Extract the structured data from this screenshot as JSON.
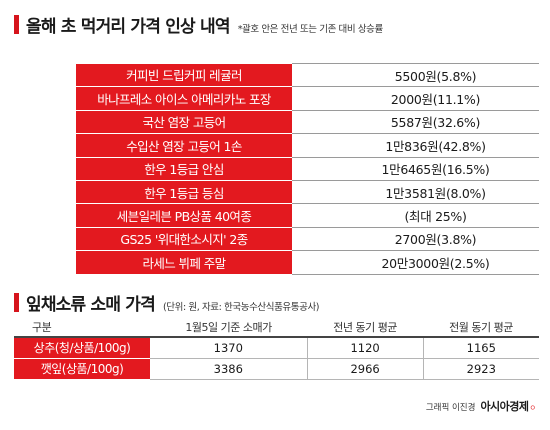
{
  "header": {
    "title": "올해 초 먹거리 가격 인상 내역",
    "note": "*괄호 안은 전년 또는 기존 대비 상승률"
  },
  "items": [
    {
      "name": "커피빈 드립커피 레귤러",
      "value": "5500원(5.8%)"
    },
    {
      "name": "바나프레소 아이스 아메리카노 포장",
      "value": "2000원(11.1%)"
    },
    {
      "name": "국산 염장 고등어",
      "value": "5587원(32.6%)"
    },
    {
      "name": "수입산 염장 고등어 1손",
      "value": "1만836원(42.8%)"
    },
    {
      "name": "한우 1등급 안심",
      "value": "1만6465원(16.5%)"
    },
    {
      "name": "한우 1등급 등심",
      "value": "1만3581원(8.0%)"
    },
    {
      "name": "세븐일레븐 PB상품 40여종",
      "value": "(최대 25%)"
    },
    {
      "name": "GS25 '위대한소시지' 2종",
      "value": "2700원(3.8%)"
    },
    {
      "name": "라세느 뷔페 주말",
      "value": "20만3000원(2.5%)"
    }
  ],
  "veg": {
    "title": "잎채소류 소매 가격",
    "note": "(단위: 원, 자료: 한국농수산식품유통공사)",
    "columns": [
      "구분",
      "1월5일 기준 소매가",
      "전년 동기 평균",
      "전월 동기 평균"
    ],
    "rows": [
      {
        "name": "상추(청/상품/100g)",
        "values": [
          "1370",
          "1120",
          "1165"
        ]
      },
      {
        "name": "깻잎(상품/100g)",
        "values": [
          "3386",
          "2966",
          "2923"
        ]
      }
    ]
  },
  "credit": {
    "graphic": "그래픽 이진경",
    "publisher": "아시아경제",
    "mark": "ㅇ"
  },
  "colors": {
    "accent_red": "#e3191f"
  }
}
